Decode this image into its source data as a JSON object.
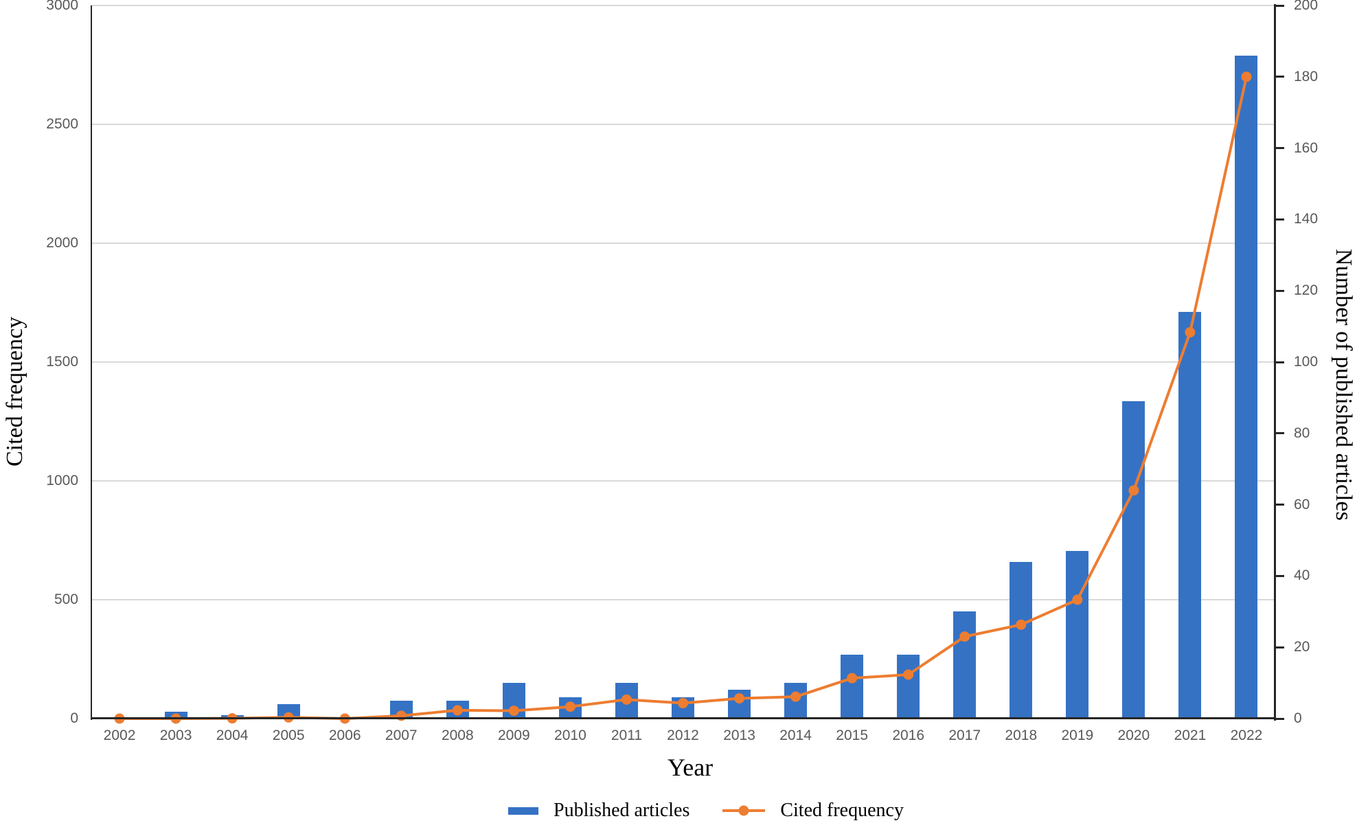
{
  "chart_data": {
    "type": "bar+line combo with dual y-axes",
    "title": "",
    "categories": [
      "2002",
      "2003",
      "2004",
      "2005",
      "2006",
      "2007",
      "2008",
      "2009",
      "2010",
      "2011",
      "2012",
      "2013",
      "2014",
      "2015",
      "2016",
      "2017",
      "2018",
      "2019",
      "2020",
      "2021",
      "2022"
    ],
    "series": [
      {
        "name": "Published articles",
        "type": "bar",
        "axis": "right",
        "color": "#3572C4",
        "values": [
          0,
          2,
          1,
          4,
          0,
          5,
          5,
          10,
          6,
          10,
          6,
          8,
          10,
          18,
          18,
          30,
          44,
          47,
          89,
          114,
          186
        ]
      },
      {
        "name": "Cited frequency",
        "type": "line",
        "axis": "left",
        "color": "#ED7D31",
        "marker": "circle",
        "values": [
          0,
          0,
          1,
          5,
          0,
          12,
          35,
          33,
          50,
          80,
          65,
          85,
          92,
          170,
          185,
          345,
          395,
          500,
          960,
          1625,
          2700
        ]
      }
    ],
    "left_axis": {
      "label": "Cited frequency",
      "min": 0,
      "max": 3000,
      "step": 500,
      "ticks": [
        "0",
        "500",
        "1000",
        "1500",
        "2000",
        "2500",
        "3000"
      ]
    },
    "right_axis": {
      "label": "Number of published articles",
      "min": 0,
      "max": 200,
      "step": 20,
      "ticks": [
        "0",
        "20",
        "40",
        "60",
        "80",
        "100",
        "120",
        "140",
        "160",
        "180",
        "200"
      ]
    },
    "x_axis": {
      "label": "Year",
      "ticks": [
        "2002",
        "2003",
        "2004",
        "2005",
        "2006",
        "2007",
        "2008",
        "2009",
        "2010",
        "2011",
        "2012",
        "2013",
        "2014",
        "2015",
        "2016",
        "2017",
        "2018",
        "2019",
        "2020",
        "2021",
        "2022"
      ]
    },
    "grid": "horizontal major gridlines",
    "legend_position": "bottom-center",
    "colors": {
      "gridline": "#d9d9d9",
      "axis_line": "#262626",
      "tick_text": "#595959",
      "title_text": "#000000"
    }
  }
}
